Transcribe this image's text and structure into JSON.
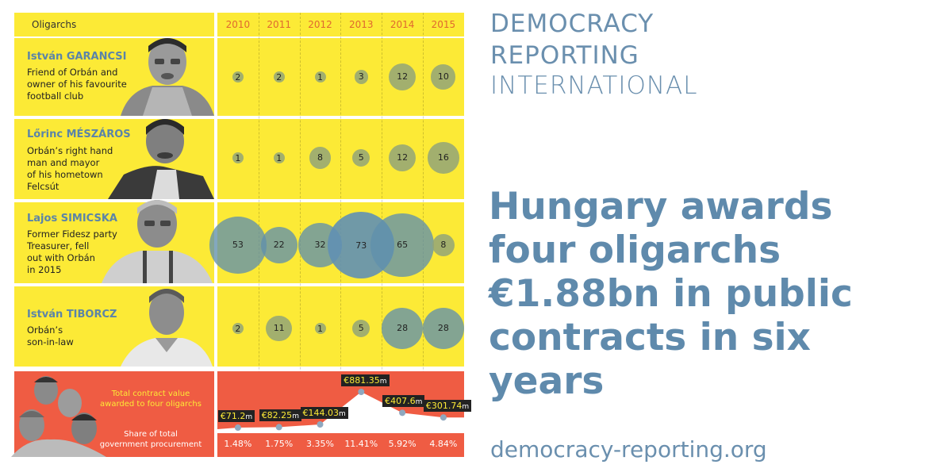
{
  "header": {
    "oligarchs_label": "Oligarchs",
    "years": [
      "2010",
      "2011",
      "2012",
      "2013",
      "2014",
      "2015"
    ]
  },
  "rows": [
    {
      "name": "István GARANCSI",
      "desc": [
        "Friend of Orbán and",
        "owner of his favourite",
        "football club"
      ]
    },
    {
      "name": "Lőrinc MÉSZÁROS",
      "desc": [
        "Orbán’s right hand",
        "man and mayor",
        "of his hometown",
        "Felcsút"
      ]
    },
    {
      "name": "Lajos SIMICSKA",
      "desc": [
        "Former Fidesz party",
        "Treasurer, fell",
        "out with Orbán",
        "in 2015"
      ]
    },
    {
      "name": "István TIBORCZ",
      "desc": [
        "Orbán’s",
        "son-in-law"
      ]
    }
  ],
  "chart_data": {
    "type": "bubble",
    "categories": [
      "2010",
      "2011",
      "2012",
      "2013",
      "2014",
      "2015"
    ],
    "series": [
      {
        "name": "István GARANCSI",
        "values": [
          2,
          2,
          1,
          3,
          12,
          10
        ]
      },
      {
        "name": "Lőrinc MÉSZÁROS",
        "values": [
          1,
          1,
          8,
          5,
          12,
          16
        ]
      },
      {
        "name": "Lajos SIMICSKA",
        "values": [
          53,
          22,
          32,
          73,
          65,
          8
        ]
      },
      {
        "name": "István TIBORCZ",
        "values": [
          2,
          11,
          1,
          5,
          28,
          28
        ]
      }
    ],
    "totals": {
      "label": "Total contract value awarded to four oligarchs",
      "values_m_eur": [
        71.2,
        82.25,
        144.03,
        881.35,
        407.6,
        301.74
      ],
      "value_labels": [
        "€71.2",
        "€82.25",
        "€144.03",
        "€881.35",
        "€407.6",
        "€301.74"
      ],
      "unit_suffix": "m"
    },
    "share": {
      "label": "Share of total government procurement",
      "values_pct": [
        1.48,
        1.75,
        3.35,
        11.41,
        5.92,
        4.84
      ],
      "value_labels": [
        "1.48%",
        "1.75%",
        "3.35%",
        "11.41%",
        "5.92%",
        "4.84%"
      ]
    },
    "colors": {
      "bubble_small": "#a6ad6f",
      "bubble_large": "#6f9aad",
      "yellow": "#fcea36",
      "orange": "#ef5c43"
    }
  },
  "totals_label": {
    "line1": "Total contract value",
    "line2": "awarded to four oligarchs"
  },
  "share_label": {
    "line1": "Share of total",
    "line2": "government procurement"
  },
  "brand": {
    "line1": "DEMOCRACY",
    "line2": "REPORTING",
    "line3": "INTERNATIONAL"
  },
  "headline": [
    "Hungary awards",
    "four oligarchs",
    "€1.88bn in public",
    "contracts in six",
    "years"
  ],
  "url": "democracy-reporting.org"
}
